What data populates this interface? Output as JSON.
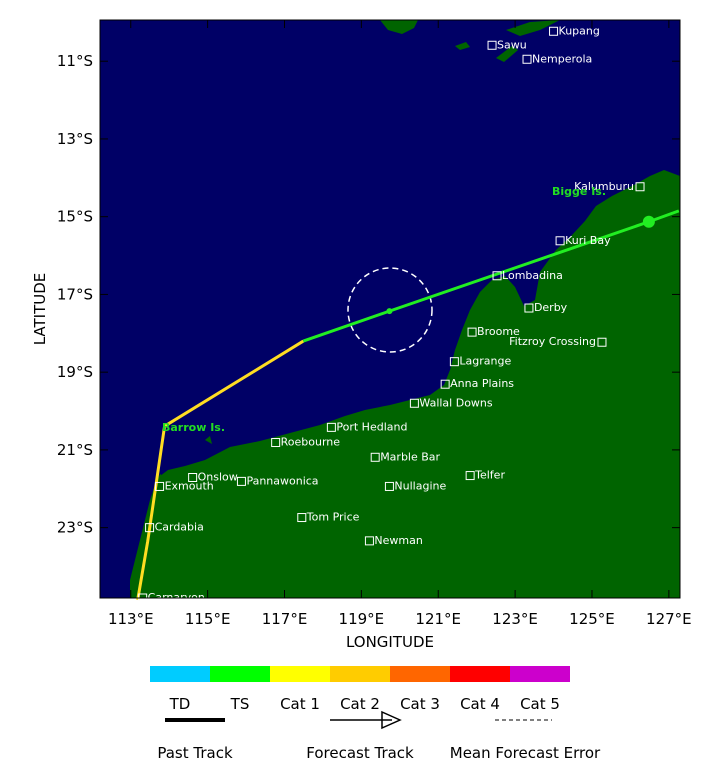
{
  "map": {
    "xlabel": "LONGITUDE",
    "ylabel": "LATITUDE",
    "xlim": [
      112.2,
      127.29
    ],
    "ylim": [
      -24.81,
      -9.94
    ],
    "xticks": [
      {
        "value": 113,
        "label": "113°E"
      },
      {
        "value": 115,
        "label": "115°E"
      },
      {
        "value": 117,
        "label": "117°E"
      },
      {
        "value": 119,
        "label": "119°E"
      },
      {
        "value": 121,
        "label": "121°E"
      },
      {
        "value": 123,
        "label": "123°E"
      },
      {
        "value": 125,
        "label": "125°E"
      },
      {
        "value": 127,
        "label": "127°E"
      }
    ],
    "yticks": [
      {
        "value": -11,
        "label": "11°S"
      },
      {
        "value": -13,
        "label": "13°S"
      },
      {
        "value": -15,
        "label": "15°S"
      },
      {
        "value": -17,
        "label": "17°S"
      },
      {
        "value": -19,
        "label": "19°S"
      },
      {
        "value": -21,
        "label": "21°S"
      },
      {
        "value": -23,
        "label": "23°S"
      }
    ],
    "places": [
      {
        "name": "Kupang",
        "lon": 124.0,
        "lat": -10.23
      },
      {
        "name": "Sawu",
        "lon": 122.4,
        "lat": -10.59
      },
      {
        "name": "Nemperola",
        "lon": 123.31,
        "lat": -10.95
      },
      {
        "name": "Kalumburu",
        "lon": 126.25,
        "lat": -14.23
      },
      {
        "name": "Kuri Bay",
        "lon": 124.17,
        "lat": -15.62
      },
      {
        "name": "Lombadina",
        "lon": 122.53,
        "lat": -16.52
      },
      {
        "name": "Derby",
        "lon": 123.36,
        "lat": -17.35
      },
      {
        "name": "Broome",
        "lon": 121.88,
        "lat": -17.97
      },
      {
        "name": "Fitzroy Crossing",
        "lon": 125.26,
        "lat": -18.23
      },
      {
        "name": "Lagrange",
        "lon": 121.42,
        "lat": -18.73
      },
      {
        "name": "Anna Plains",
        "lon": 121.18,
        "lat": -19.31
      },
      {
        "name": "Wallal Downs",
        "lon": 120.38,
        "lat": -19.8
      },
      {
        "name": "Port Hedland",
        "lon": 118.22,
        "lat": -20.42
      },
      {
        "name": "Roebourne",
        "lon": 116.77,
        "lat": -20.81
      },
      {
        "name": "Marble Bar",
        "lon": 119.36,
        "lat": -21.19
      },
      {
        "name": "Telfer",
        "lon": 121.83,
        "lat": -21.66
      },
      {
        "name": "Onslow",
        "lon": 114.61,
        "lat": -21.71
      },
      {
        "name": "Pannawonica",
        "lon": 115.88,
        "lat": -21.81
      },
      {
        "name": "Exmouth",
        "lon": 113.75,
        "lat": -21.94
      },
      {
        "name": "Nullagine",
        "lon": 119.73,
        "lat": -21.94
      },
      {
        "name": "Tom Price",
        "lon": 117.45,
        "lat": -22.74
      },
      {
        "name": "Cardabia",
        "lon": 113.49,
        "lat": -23.0
      },
      {
        "name": "Newman",
        "lon": 119.21,
        "lat": -23.34
      },
      {
        "name": "Carnarvon",
        "lon": 113.31,
        "lat": -24.81
      }
    ],
    "islands": [
      "Bigge Is.",
      "Barrow Is."
    ],
    "track": [
      {
        "color": "#ffdd22",
        "lon": [
          113.18,
          113.44,
          113.88,
          117.49
        ],
        "lat": [
          -24.86,
          -23.36,
          -20.39,
          -18.2
        ]
      },
      {
        "color": "#22ee22",
        "lon": [
          117.49,
          119.73,
          126.48,
          127.26
        ],
        "lat": [
          -18.2,
          -17.43,
          -15.13,
          -14.85
        ]
      }
    ],
    "positions": {
      "lon": [
        119.73,
        126.48
      ],
      "lat": [
        -17.43,
        -15.13
      ]
    }
  },
  "legend": {
    "scale": [
      {
        "label": "TD",
        "color": "#00ccff"
      },
      {
        "label": "TS",
        "color": "#00ff00"
      },
      {
        "label": "Cat 1",
        "color": "#ffff00"
      },
      {
        "label": "Cat 2",
        "color": "#ffcc00"
      },
      {
        "label": "Cat 3",
        "color": "#ff6600"
      },
      {
        "label": "Cat 4",
        "color": "#ff0000"
      },
      {
        "label": "Cat 5",
        "color": "#cc00cc"
      }
    ],
    "items": [
      "Past Track",
      "Forecast Track",
      "Mean Forecast Error"
    ]
  }
}
